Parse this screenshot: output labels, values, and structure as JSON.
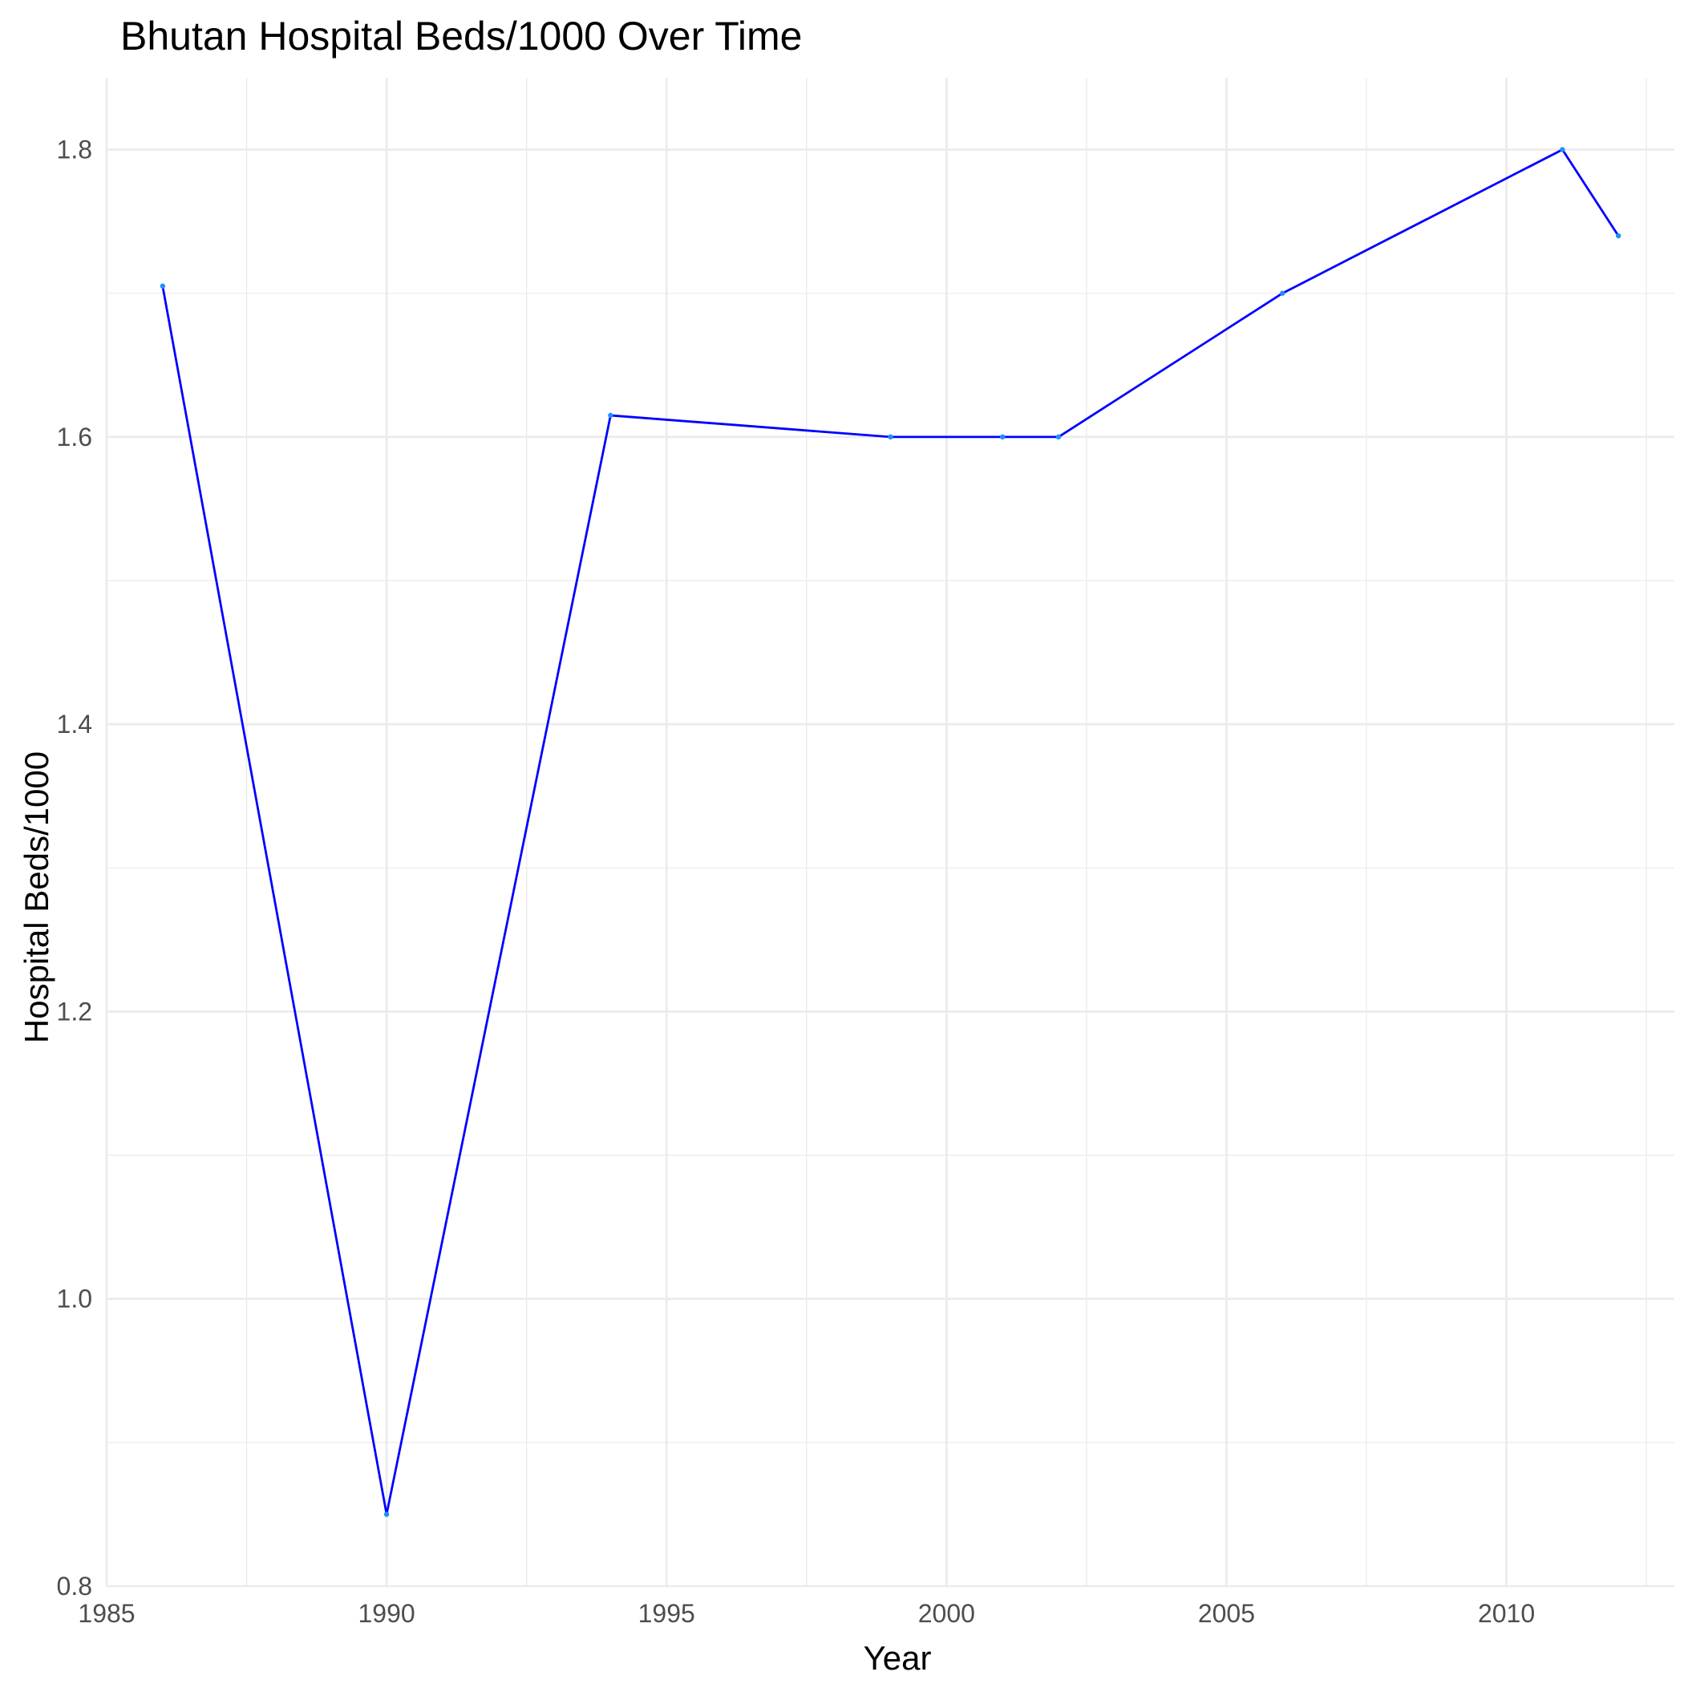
{
  "chart_data": {
    "type": "line",
    "title": "Bhutan Hospital Beds/1000 Over Time",
    "xlabel": "Year",
    "ylabel": "Hospital Beds/1000",
    "xlim": [
      1985,
      2013
    ],
    "ylim": [
      0.8,
      1.85
    ],
    "x_ticks": [
      "1985",
      "1990",
      "1995",
      "2000",
      "2005",
      "2010"
    ],
    "y_ticks": [
      "0.8",
      "1.0",
      "1.2",
      "1.4",
      "1.6",
      "1.8"
    ],
    "grid": true,
    "legend": "none",
    "line_color": "#0000ff",
    "point_color": "#1e90ff",
    "series": [
      {
        "x": [
          1986,
          1990,
          1994,
          1999,
          2001,
          2002,
          2006,
          2011,
          2012
        ],
        "y": [
          1.705,
          0.85,
          1.615,
          1.6,
          1.6,
          1.6,
          1.7,
          1.8,
          1.74
        ]
      }
    ]
  }
}
